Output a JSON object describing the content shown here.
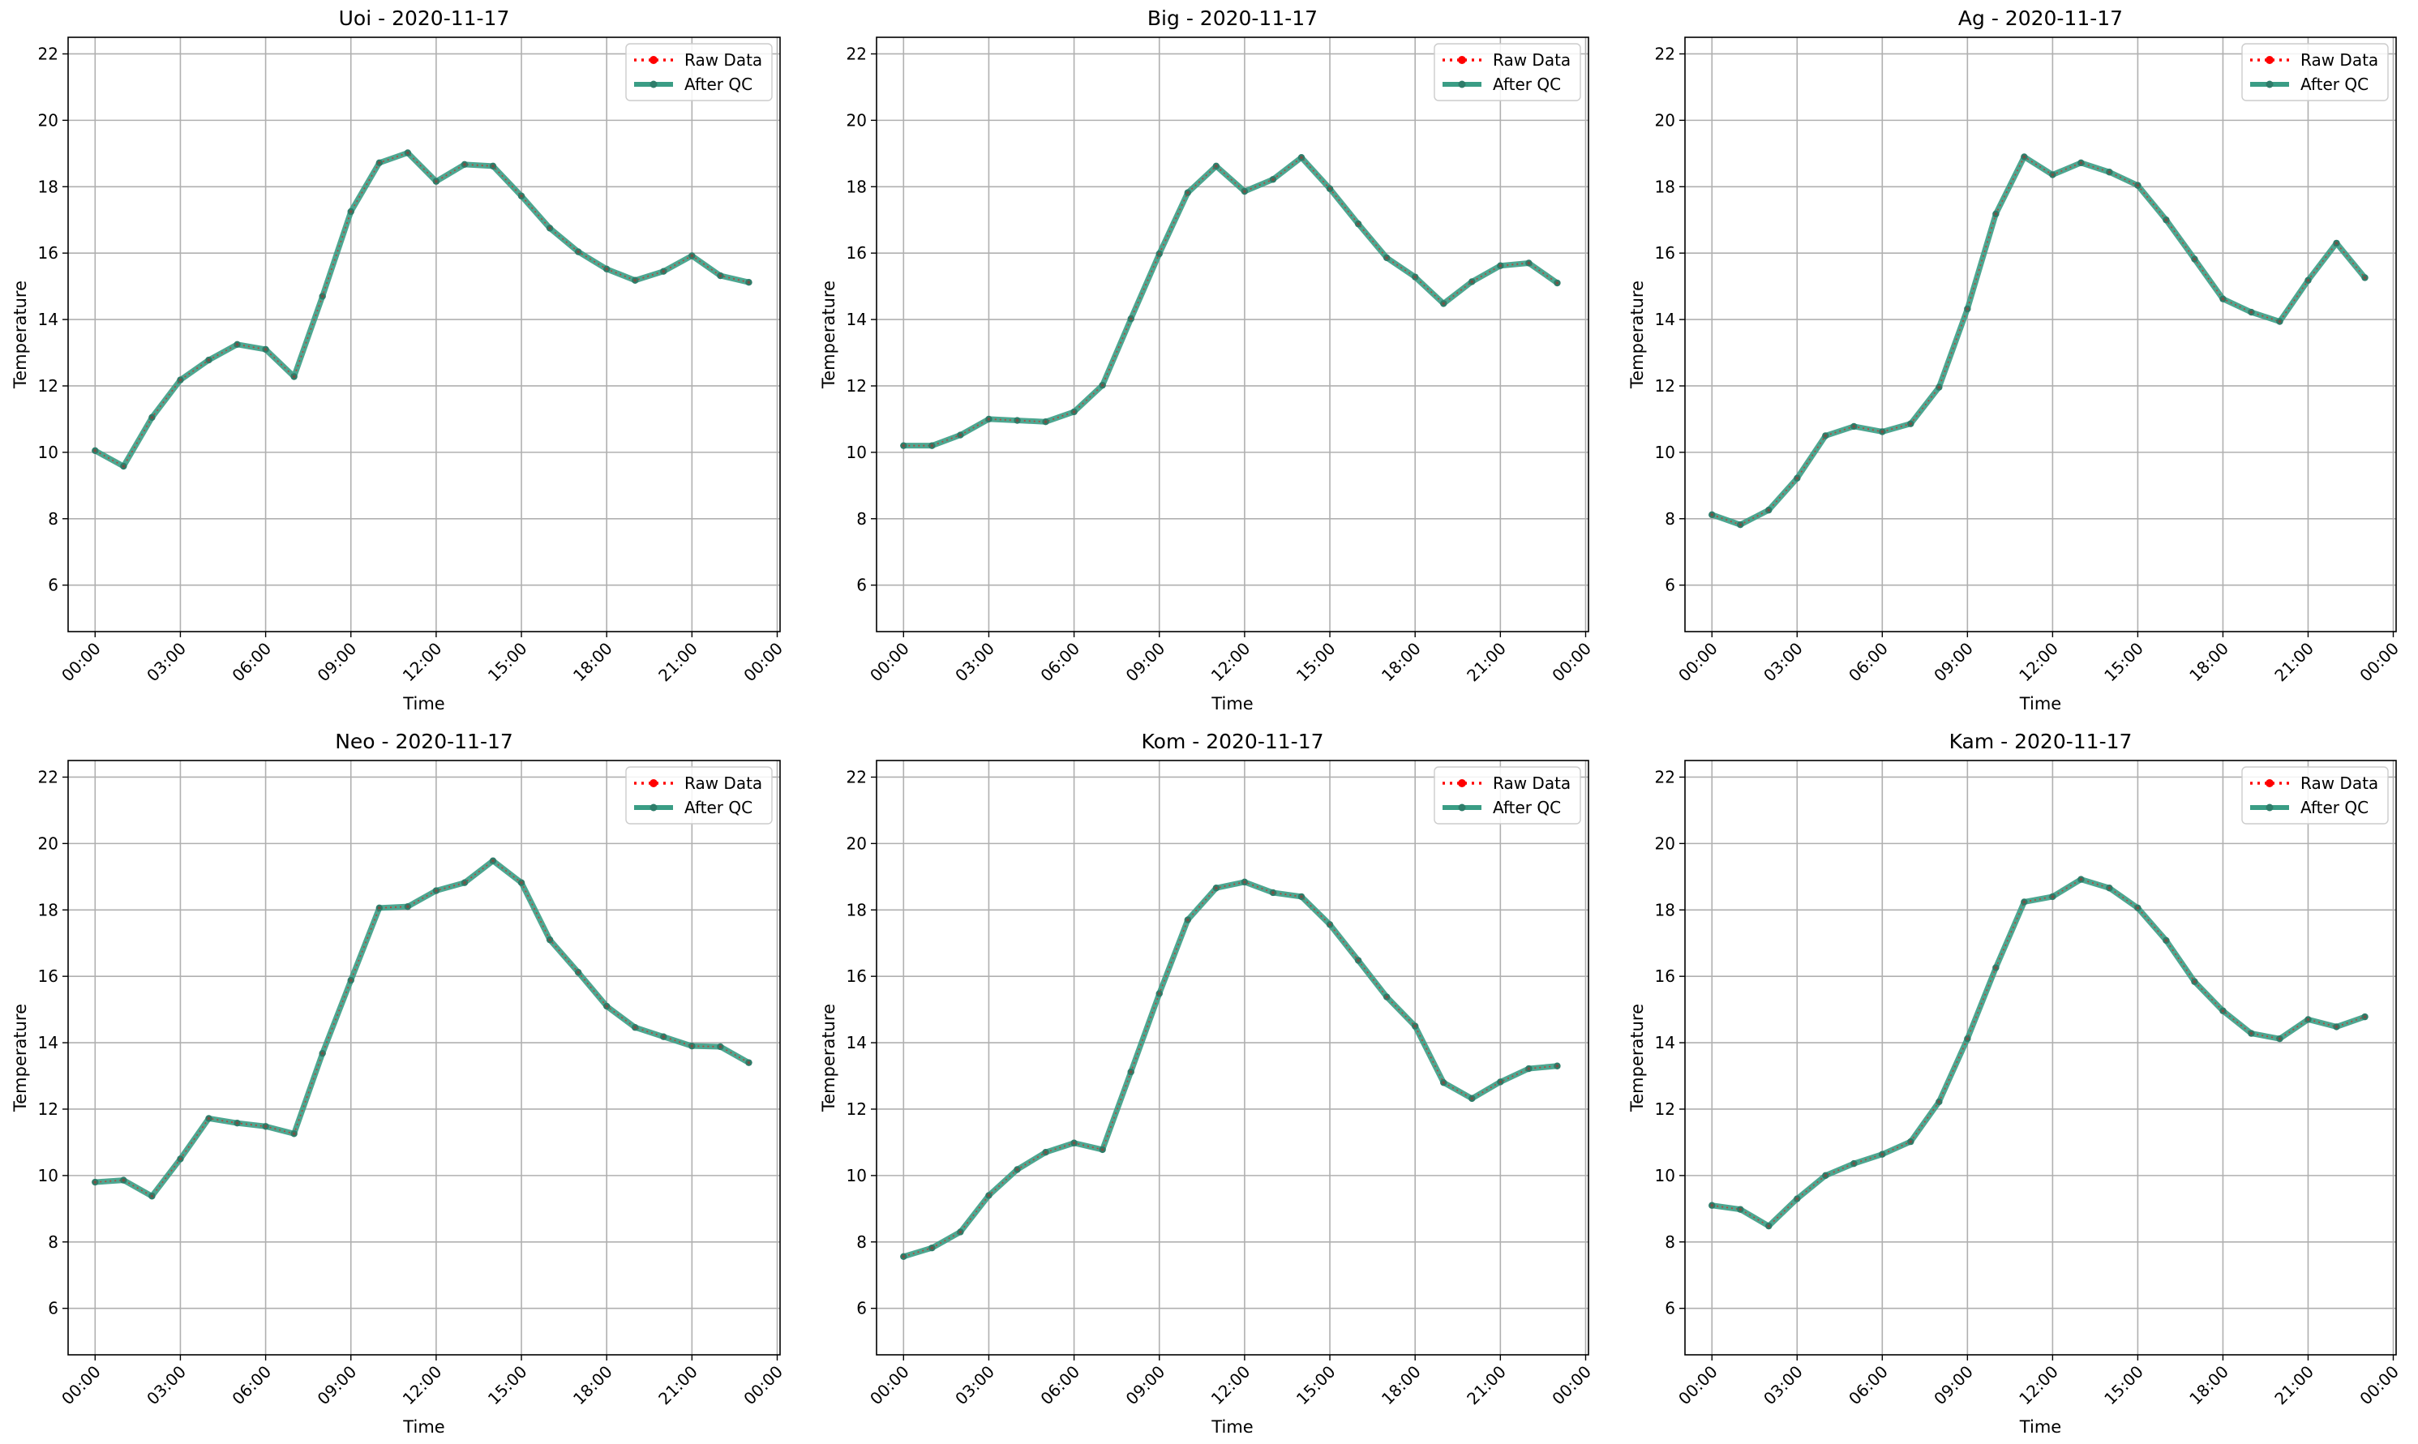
{
  "figure": {
    "legend_labels": [
      "Raw Data",
      "After QC"
    ],
    "colors": {
      "raw": "#ff0000",
      "qc": "#2ca02c",
      "qc_line": "#3a9d85",
      "qc_marker": "#2e7d6a",
      "grid": "#b0b0b0"
    }
  },
  "chart_data": [
    {
      "type": "line",
      "title": "Uoi - 2020-11-17",
      "xlabel": "Time",
      "ylabel": "Temperature",
      "x": [
        "00:00",
        "01:00",
        "02:00",
        "03:00",
        "04:00",
        "05:00",
        "06:00",
        "07:00",
        "08:00",
        "09:00",
        "10:00",
        "11:00",
        "12:00",
        "13:00",
        "14:00",
        "15:00",
        "16:00",
        "17:00",
        "18:00",
        "19:00",
        "20:00",
        "21:00",
        "22:00",
        "23:00"
      ],
      "xticks": [
        "00:00",
        "03:00",
        "06:00",
        "09:00",
        "12:00",
        "15:00",
        "18:00",
        "21:00",
        "00:00"
      ],
      "ylim": [
        4.6,
        22.5
      ],
      "yticks": [
        6,
        8,
        10,
        12,
        14,
        16,
        18,
        20,
        22
      ],
      "legend": "top-right",
      "grid": true,
      "series": [
        {
          "name": "Raw Data",
          "values": [
            10.05,
            9.58,
            11.05,
            12.18,
            12.78,
            13.25,
            13.1,
            12.28,
            14.7,
            17.25,
            18.72,
            19.02,
            18.16,
            18.67,
            18.62,
            17.72,
            16.75,
            16.04,
            15.52,
            15.18,
            15.45,
            15.92,
            15.32,
            15.12
          ]
        },
        {
          "name": "After QC",
          "values": [
            10.05,
            9.58,
            11.05,
            12.18,
            12.78,
            13.25,
            13.1,
            12.28,
            14.7,
            17.25,
            18.72,
            19.02,
            18.16,
            18.67,
            18.62,
            17.72,
            16.75,
            16.04,
            15.52,
            15.18,
            15.45,
            15.92,
            15.32,
            15.12
          ]
        }
      ]
    },
    {
      "type": "line",
      "title": "Big - 2020-11-17",
      "xlabel": "Time",
      "ylabel": "Temperature",
      "x": [
        "00:00",
        "01:00",
        "02:00",
        "03:00",
        "04:00",
        "05:00",
        "06:00",
        "07:00",
        "08:00",
        "09:00",
        "10:00",
        "11:00",
        "12:00",
        "13:00",
        "14:00",
        "15:00",
        "16:00",
        "17:00",
        "18:00",
        "19:00",
        "20:00",
        "21:00",
        "22:00",
        "23:00"
      ],
      "xticks": [
        "00:00",
        "03:00",
        "06:00",
        "09:00",
        "12:00",
        "15:00",
        "18:00",
        "21:00",
        "00:00"
      ],
      "ylim": [
        4.6,
        22.5
      ],
      "yticks": [
        6,
        8,
        10,
        12,
        14,
        16,
        18,
        20,
        22
      ],
      "legend": "top-right",
      "grid": true,
      "series": [
        {
          "name": "Raw Data",
          "values": [
            10.2,
            10.2,
            10.52,
            11.0,
            10.96,
            10.92,
            11.22,
            12.02,
            14.02,
            15.98,
            17.82,
            18.62,
            17.86,
            18.22,
            18.88,
            17.94,
            16.88,
            15.86,
            15.28,
            14.48,
            15.14,
            15.62,
            15.7,
            15.1
          ]
        },
        {
          "name": "After QC",
          "values": [
            10.2,
            10.2,
            10.52,
            11.0,
            10.96,
            10.92,
            11.22,
            12.02,
            14.02,
            15.98,
            17.82,
            18.62,
            17.86,
            18.22,
            18.88,
            17.94,
            16.88,
            15.86,
            15.28,
            14.48,
            15.14,
            15.62,
            15.7,
            15.1
          ]
        }
      ]
    },
    {
      "type": "line",
      "title": "Ag - 2020-11-17",
      "xlabel": "Time",
      "ylabel": "Temperature",
      "x": [
        "00:00",
        "01:00",
        "02:00",
        "03:00",
        "04:00",
        "05:00",
        "06:00",
        "07:00",
        "08:00",
        "09:00",
        "10:00",
        "11:00",
        "12:00",
        "13:00",
        "14:00",
        "15:00",
        "16:00",
        "17:00",
        "18:00",
        "19:00",
        "20:00",
        "21:00",
        "22:00",
        "23:00"
      ],
      "xticks": [
        "00:00",
        "03:00",
        "06:00",
        "09:00",
        "12:00",
        "15:00",
        "18:00",
        "21:00",
        "00:00"
      ],
      "ylim": [
        4.6,
        22.5
      ],
      "yticks": [
        6,
        8,
        10,
        12,
        14,
        16,
        18,
        20,
        22
      ],
      "legend": "top-right",
      "grid": true,
      "series": [
        {
          "name": "Raw Data",
          "values": [
            8.12,
            7.82,
            8.26,
            9.22,
            10.5,
            10.78,
            10.62,
            10.86,
            11.96,
            14.32,
            17.18,
            18.9,
            18.36,
            18.72,
            18.44,
            18.04,
            17.0,
            15.82,
            14.62,
            14.22,
            13.94,
            15.18,
            16.3,
            15.26
          ]
        },
        {
          "name": "After QC",
          "values": [
            8.12,
            7.82,
            8.26,
            9.22,
            10.5,
            10.78,
            10.62,
            10.86,
            11.96,
            14.32,
            17.18,
            18.9,
            18.36,
            18.72,
            18.44,
            18.04,
            17.0,
            15.82,
            14.62,
            14.22,
            13.94,
            15.18,
            16.3,
            15.26
          ]
        }
      ]
    },
    {
      "type": "line",
      "title": "Neo - 2020-11-17",
      "xlabel": "Time",
      "ylabel": "Temperature",
      "x": [
        "00:00",
        "01:00",
        "02:00",
        "03:00",
        "04:00",
        "05:00",
        "06:00",
        "07:00",
        "08:00",
        "09:00",
        "10:00",
        "11:00",
        "12:00",
        "13:00",
        "14:00",
        "15:00",
        "16:00",
        "17:00",
        "18:00",
        "19:00",
        "20:00",
        "21:00",
        "22:00",
        "23:00"
      ],
      "xticks": [
        "00:00",
        "03:00",
        "06:00",
        "09:00",
        "12:00",
        "15:00",
        "18:00",
        "21:00",
        "00:00"
      ],
      "ylim": [
        4.6,
        22.5
      ],
      "yticks": [
        6,
        8,
        10,
        12,
        14,
        16,
        18,
        20,
        22
      ],
      "legend": "top-right",
      "grid": true,
      "series": [
        {
          "name": "Raw Data",
          "values": [
            9.8,
            9.86,
            9.38,
            10.5,
            11.72,
            11.58,
            11.48,
            11.26,
            13.68,
            15.88,
            18.06,
            18.1,
            18.58,
            18.82,
            19.48,
            18.82,
            17.1,
            16.12,
            15.1,
            14.46,
            14.18,
            13.9,
            13.88,
            13.4
          ]
        },
        {
          "name": "After QC",
          "values": [
            9.8,
            9.86,
            9.38,
            10.5,
            11.72,
            11.58,
            11.48,
            11.26,
            13.68,
            15.88,
            18.06,
            18.1,
            18.58,
            18.82,
            19.48,
            18.82,
            17.1,
            16.12,
            15.1,
            14.46,
            14.18,
            13.9,
            13.88,
            13.4
          ]
        }
      ]
    },
    {
      "type": "line",
      "title": "Kom - 2020-11-17",
      "xlabel": "Time",
      "ylabel": "Temperature",
      "x": [
        "00:00",
        "01:00",
        "02:00",
        "03:00",
        "04:00",
        "05:00",
        "06:00",
        "07:00",
        "08:00",
        "09:00",
        "10:00",
        "11:00",
        "12:00",
        "13:00",
        "14:00",
        "15:00",
        "16:00",
        "17:00",
        "18:00",
        "19:00",
        "20:00",
        "21:00",
        "22:00",
        "23:00"
      ],
      "xticks": [
        "00:00",
        "03:00",
        "06:00",
        "09:00",
        "12:00",
        "15:00",
        "18:00",
        "21:00",
        "00:00"
      ],
      "ylim": [
        4.6,
        22.5
      ],
      "yticks": [
        6,
        8,
        10,
        12,
        14,
        16,
        18,
        20,
        22
      ],
      "legend": "top-right",
      "grid": true,
      "series": [
        {
          "name": "Raw Data",
          "values": [
            7.56,
            7.82,
            8.3,
            9.4,
            10.18,
            10.7,
            10.98,
            10.78,
            13.12,
            15.48,
            17.7,
            18.66,
            18.84,
            18.52,
            18.4,
            17.56,
            16.48,
            15.38,
            14.5,
            12.8,
            12.32,
            12.82,
            13.22,
            13.3
          ]
        },
        {
          "name": "After QC",
          "values": [
            7.56,
            7.82,
            8.3,
            9.4,
            10.18,
            10.7,
            10.98,
            10.78,
            13.12,
            15.48,
            17.7,
            18.66,
            18.84,
            18.52,
            18.4,
            17.56,
            16.48,
            15.38,
            14.5,
            12.8,
            12.32,
            12.82,
            13.22,
            13.3
          ]
        }
      ]
    },
    {
      "type": "line",
      "title": "Kam - 2020-11-17",
      "xlabel": "Time",
      "ylabel": "Temperature",
      "x": [
        "00:00",
        "01:00",
        "02:00",
        "03:00",
        "04:00",
        "05:00",
        "06:00",
        "07:00",
        "08:00",
        "09:00",
        "10:00",
        "11:00",
        "12:00",
        "13:00",
        "14:00",
        "15:00",
        "16:00",
        "17:00",
        "18:00",
        "19:00",
        "20:00",
        "21:00",
        "22:00",
        "23:00"
      ],
      "xticks": [
        "00:00",
        "03:00",
        "06:00",
        "09:00",
        "12:00",
        "15:00",
        "18:00",
        "21:00",
        "00:00"
      ],
      "ylim": [
        4.6,
        22.5
      ],
      "yticks": [
        6,
        8,
        10,
        12,
        14,
        16,
        18,
        20,
        22
      ],
      "legend": "top-right",
      "grid": true,
      "series": [
        {
          "name": "Raw Data",
          "values": [
            9.1,
            8.98,
            8.48,
            9.3,
            10.0,
            10.36,
            10.64,
            11.02,
            12.22,
            14.12,
            16.26,
            18.24,
            18.4,
            18.92,
            18.66,
            18.06,
            17.08,
            15.84,
            14.96,
            14.28,
            14.12,
            14.7,
            14.48,
            14.78
          ]
        },
        {
          "name": "After QC",
          "values": [
            9.1,
            8.98,
            8.48,
            9.3,
            10.0,
            10.36,
            10.64,
            11.02,
            12.22,
            14.12,
            16.26,
            18.24,
            18.4,
            18.92,
            18.66,
            18.06,
            17.08,
            15.84,
            14.96,
            14.28,
            14.12,
            14.7,
            14.48,
            14.78
          ]
        }
      ]
    }
  ]
}
